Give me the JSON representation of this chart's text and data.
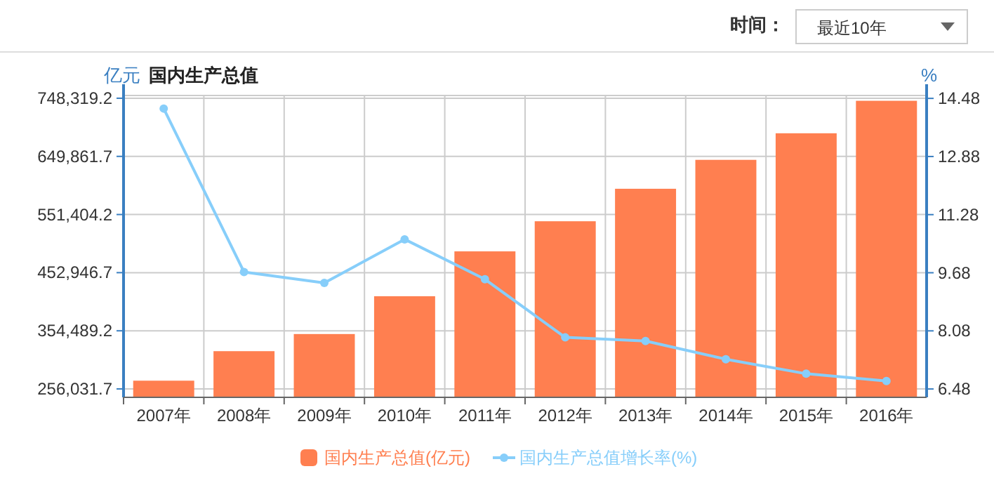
{
  "chart_data": {
    "type": "bar",
    "title": "国内生产总值",
    "ylabel": "亿元",
    "y2label": "%",
    "annotations": [
      "时间：",
      "最近10年"
    ],
    "categories": [
      "2007年",
      "2008年",
      "2009年",
      "2010年",
      "2011年",
      "2012年",
      "2013年",
      "2014年",
      "2015年",
      "2016年"
    ],
    "series": [
      {
        "name": "国内生产总值(亿元)",
        "color": "#ff7f50",
        "values": [
          270000,
          320000,
          349000,
          413000,
          489000,
          540000,
          595000,
          644000,
          689000,
          744000
        ]
      },
      {
        "name": "国内生产总值增长率(%)",
        "type": "line",
        "axis": "y2",
        "color": "#87cefa",
        "marker": "circle",
        "values": [
          14.2,
          9.7,
          9.4,
          10.6,
          9.5,
          7.9,
          7.8,
          7.3,
          6.9,
          6.7
        ]
      }
    ],
    "ylim": [
      241800,
      753000
    ],
    "yticks": [
      {
        "value": 256031.7,
        "label": "256,031.7"
      },
      {
        "value": 354489.2,
        "label": "354,489.2"
      },
      {
        "value": 452946.7,
        "label": "452,946.7"
      },
      {
        "value": 551404.2,
        "label": "551,404.2"
      },
      {
        "value": 649861.7,
        "label": "649,861.7"
      },
      {
        "value": 748319.2,
        "label": "748,319.2"
      }
    ],
    "y2lim": [
      6.25,
      14.56
    ],
    "y2ticks": [
      6.48,
      8.08,
      9.68,
      11.28,
      12.88,
      14.48
    ],
    "grid": true,
    "legend": "bottom"
  }
}
